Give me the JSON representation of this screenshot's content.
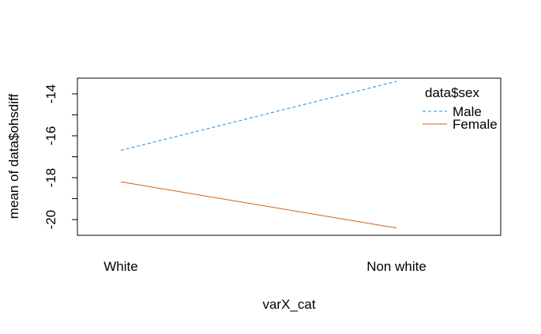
{
  "chart_data": {
    "type": "line",
    "categories": [
      "White",
      "Non white"
    ],
    "series": [
      {
        "name": "Male",
        "values": [
          -16.7,
          -13.4
        ],
        "color": "#1a8fdc",
        "dash": "dashed"
      },
      {
        "name": "Female",
        "values": [
          -18.2,
          -20.4
        ],
        "color": "#d95f0e",
        "dash": "solid"
      }
    ],
    "xlabel": "varX_cat",
    "ylabel": "mean of  data$ohsdiff",
    "yticks": [
      -20,
      -18,
      -16,
      -14
    ],
    "yminor": [
      -19,
      -17,
      -15
    ],
    "ylim": [
      -20.75,
      -13.25
    ],
    "legend": {
      "title": "data$sex",
      "position": "top-right"
    },
    "grid": false
  }
}
